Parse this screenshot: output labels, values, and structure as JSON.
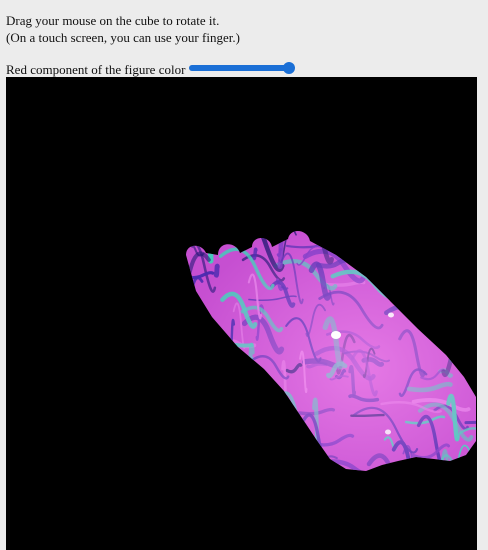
{
  "instructions": {
    "line1": "Drag your mouse on the cube to rotate it.",
    "line2": "(On a touch screen, you can use your finger.)"
  },
  "control": {
    "label": "Red component of the figure color",
    "slider_value": 1.0
  },
  "viewport": {
    "background": "#000000",
    "figure_base_color": "#c64fd1",
    "figure_dark_color": "#4b2bb0",
    "figure_accent_color": "#3fd0b8",
    "figure_highlight_color": "#ffffff"
  }
}
